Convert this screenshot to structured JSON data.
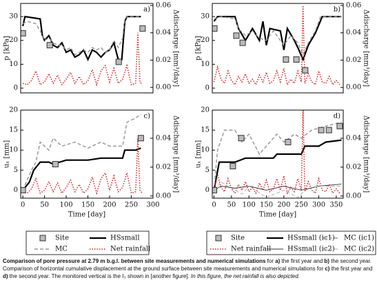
{
  "chart_data": [
    {
      "type": "line",
      "label": "a)",
      "ylabel": "p [kPa]",
      "y2label": "Δdischarge [mm³/day]",
      "xlim": [
        -5,
        300
      ],
      "ylim": [
        -2,
        35.5
      ],
      "yticks": [
        0,
        10,
        20,
        30
      ],
      "y2lim": [
        -0.004,
        0.0615
      ],
      "y2ticks": [
        {
          "value": 0,
          "label": "0.00"
        },
        {
          "value": 0.02,
          "label": "0.02"
        },
        {
          "value": 0.04,
          "label": "0.04"
        },
        {
          "value": 0.06,
          "label": "0.06"
        }
      ],
      "series": [
        {
          "color": "#000000",
          "style": "solid",
          "width": 2.2,
          "x": [
            0,
            5,
            40,
            45,
            50,
            60,
            70,
            80,
            90,
            100,
            110,
            120,
            130,
            140,
            150,
            160,
            170,
            180,
            190,
            200,
            210,
            220,
            228,
            235,
            240,
            272
          ],
          "values": [
            26,
            30,
            29,
            22,
            20,
            22,
            18,
            17,
            19,
            15,
            16,
            13,
            14,
            16,
            12,
            16,
            15,
            13,
            15,
            16,
            19,
            12,
            12,
            28,
            30,
            30
          ]
        },
        {
          "color": "#999999",
          "style": "dash",
          "width": 1.5,
          "x": [
            0,
            10,
            30,
            40,
            50,
            60,
            70,
            80,
            90,
            100,
            110,
            120,
            130,
            140,
            150,
            160,
            170,
            180,
            190,
            200,
            210,
            220,
            230,
            235,
            240,
            272
          ],
          "values": [
            27,
            28,
            27,
            24,
            20,
            21,
            19,
            18,
            18,
            16,
            17,
            14,
            15,
            16,
            15,
            17,
            16,
            17,
            15,
            16,
            20,
            17,
            21,
            29,
            30,
            30
          ]
        },
        {
          "color": "#d62020",
          "style": "dot",
          "width": 1.5,
          "axis": "y2",
          "x": [
            0,
            10,
            20,
            30,
            40,
            50,
            60,
            70,
            80,
            90,
            100,
            110,
            120,
            130,
            140,
            150,
            160,
            170,
            180,
            190,
            200,
            210,
            220,
            230,
            240,
            250,
            260,
            265,
            270,
            275
          ],
          "values": [
            0.003,
            0.002,
            0.005,
            0.012,
            0.002,
            0.004,
            0.01,
            0.003,
            0.009,
            0.002,
            0.006,
            0.011,
            0.003,
            0.008,
            0.002,
            0.005,
            0.013,
            0.002,
            0.012,
            0.016,
            0.004,
            0.014,
            0.003,
            0.006,
            0.016,
            0.002,
            0.003,
            0.04,
            0.004,
            0.002
          ]
        },
        {
          "color": "#bbbbbb",
          "style": "square",
          "x": [
            0,
            62,
            221,
            276
          ],
          "values": [
            23,
            18,
            11,
            25
          ]
        }
      ]
    },
    {
      "type": "line",
      "label": "b)",
      "ylabel": "p [kPa]",
      "y2label": "Δdischarge [mm³/day]",
      "xlim": [
        -5,
        370
      ],
      "ylim": [
        -2,
        35.5
      ],
      "yticks": [
        0,
        10,
        20,
        30
      ],
      "y2lim": [
        -0.004,
        0.0615
      ],
      "y2ticks": [
        {
          "value": 0,
          "label": "0.00"
        },
        {
          "value": 0.02,
          "label": "0.02"
        },
        {
          "value": 0.04,
          "label": "0.04"
        },
        {
          "value": 0.06,
          "label": "0.06"
        }
      ],
      "series": [
        {
          "color": "#000000",
          "style": "solid",
          "width": 2.2,
          "x": [
            0,
            10,
            20,
            60,
            70,
            90,
            110,
            130,
            140,
            150,
            160,
            190,
            200,
            210,
            230,
            240,
            255,
            270,
            290,
            310,
            365
          ],
          "values": [
            28,
            30,
            30,
            30,
            25,
            20,
            25,
            20,
            28,
            18,
            25,
            24,
            16,
            25,
            20,
            17,
            12,
            18,
            23,
            30,
            30
          ]
        },
        {
          "color": "#999999",
          "style": "dash",
          "width": 1.5,
          "x": [
            0,
            20,
            60,
            70,
            90,
            110,
            130,
            150,
            170,
            200,
            220,
            240,
            255,
            270,
            290,
            305,
            365
          ],
          "values": [
            29,
            30,
            29,
            25,
            22,
            24,
            21,
            20,
            24,
            18,
            22,
            19,
            14,
            19,
            24,
            30,
            30
          ]
        },
        {
          "color": "#d62020",
          "style": "dot",
          "width": 1.5,
          "axis": "y2",
          "x": [
            0,
            10,
            20,
            30,
            40,
            50,
            60,
            70,
            80,
            90,
            100,
            110,
            120,
            130,
            140,
            150,
            160,
            170,
            180,
            190,
            200,
            210,
            220,
            230,
            240,
            250,
            255,
            260,
            270,
            280,
            290,
            300,
            310,
            320,
            330,
            340,
            350,
            360
          ],
          "values": [
            0.004,
            0.015,
            0.006,
            0.003,
            0.012,
            0.005,
            0.002,
            0.008,
            0.004,
            0.01,
            0.003,
            0.006,
            0.002,
            0.009,
            0.004,
            0.011,
            0.003,
            0.005,
            0.012,
            0.004,
            0.014,
            0.002,
            0.006,
            0.003,
            0.012,
            0.004,
            0.06,
            0.003,
            0.01,
            0.004,
            0.002,
            0.012,
            0.004,
            0.003,
            0.008,
            0.002,
            0.005,
            0.002
          ]
        },
        {
          "color": "#bbbbbb",
          "style": "square",
          "x": [
            1,
            64,
            82,
            206,
            236,
            261
          ],
          "values": [
            25,
            22,
            19,
            12,
            12,
            7.5
          ]
        }
      ]
    },
    {
      "type": "line",
      "label": "c)",
      "ylabel": "uₓ [mm]",
      "y2label": "Δdischarge [mm³/day]",
      "xlabel": "Time [day]",
      "xlim": [
        -5,
        300
      ],
      "xticks": [
        0,
        50,
        100,
        150,
        200,
        250,
        300
      ],
      "ylim": [
        -2,
        20
      ],
      "yticks": [
        0,
        5,
        10,
        15,
        20
      ],
      "y2lim": [
        -0.0015,
        0.0595
      ],
      "y2ticks": [
        {
          "value": 0,
          "label": "0.00"
        },
        {
          "value": 0.02,
          "label": "0.02"
        },
        {
          "value": 0.04,
          "label": "0.04"
        }
      ],
      "series": [
        {
          "name": "Site",
          "color": "#bbbbbb",
          "style": "square",
          "x": [
            0,
            75,
            272
          ],
          "values": [
            0,
            6.5,
            13
          ]
        },
        {
          "name": "HSsmall",
          "color": "#000000",
          "style": "solid",
          "width": 2.2,
          "x": [
            0,
            15,
            25,
            40,
            60,
            70,
            100,
            150,
            180,
            230,
            235,
            260,
            272
          ],
          "values": [
            0,
            2,
            5,
            7,
            7,
            6.5,
            7.5,
            7.5,
            8,
            8,
            10,
            10,
            10.5
          ]
        },
        {
          "name": "MC",
          "color": "#999999",
          "style": "dash",
          "width": 1.5,
          "x": [
            0,
            20,
            30,
            40,
            60,
            70,
            90,
            120,
            150,
            180,
            200,
            230,
            240,
            260,
            272
          ],
          "values": [
            0,
            5,
            7,
            12,
            10,
            13,
            11,
            12,
            10.5,
            12,
            11,
            11,
            17,
            18,
            19
          ]
        },
        {
          "name": "Net rainfall",
          "color": "#d62020",
          "style": "dot",
          "width": 1.5,
          "axis": "y2",
          "x": [
            0,
            10,
            20,
            30,
            40,
            50,
            60,
            70,
            80,
            90,
            100,
            110,
            120,
            130,
            140,
            150,
            160,
            170,
            180,
            190,
            200,
            210,
            220,
            230,
            240,
            250,
            260,
            265,
            270,
            275
          ],
          "values": [
            0.003,
            0.002,
            0.005,
            0.012,
            0.002,
            0.004,
            0.01,
            0.003,
            0.009,
            0.002,
            0.006,
            0.011,
            0.003,
            0.008,
            0.002,
            0.005,
            0.013,
            0.002,
            0.012,
            0.016,
            0.004,
            0.014,
            0.003,
            0.006,
            0.016,
            0.002,
            0.003,
            0.04,
            0.004,
            0.002
          ]
        }
      ]
    },
    {
      "type": "line",
      "label": "d)",
      "ylabel": "uₓ [mm]",
      "y2label": "Δdischarge [mm³/day]",
      "xlabel": "Time [day]",
      "xlim": [
        -5,
        370
      ],
      "xticks": [
        0,
        50,
        100,
        150,
        200,
        250,
        300,
        350
      ],
      "ylim": [
        -2,
        20
      ],
      "yticks": [
        0,
        5,
        10,
        15,
        20
      ],
      "y2lim": [
        -0.0015,
        0.0595
      ],
      "y2ticks": [
        {
          "value": 0,
          "label": "0.00"
        },
        {
          "value": 0.02,
          "label": "0.02"
        },
        {
          "value": 0.04,
          "label": "0.04"
        }
      ],
      "series": [
        {
          "name": "Site",
          "color": "#bbbbbb",
          "style": "square",
          "x": [
            0,
            54,
            78,
            212,
            307,
            329,
            360
          ],
          "values": [
            0,
            6,
            13,
            12,
            15,
            15,
            16
          ]
        },
        {
          "name": "HSsmall (ic1)",
          "color": "#000000",
          "style": "solid",
          "width": 2.2,
          "x": [
            0,
            15,
            60,
            90,
            170,
            180,
            250,
            260,
            300,
            320,
            365
          ],
          "values": [
            0,
            7,
            7,
            8,
            8,
            9,
            9,
            11,
            11,
            12,
            12.5
          ]
        },
        {
          "name": "MC (ic1)",
          "color": "#999999",
          "style": "dash",
          "width": 1.5,
          "x": [
            0,
            10,
            30,
            60,
            80,
            100,
            130,
            180,
            200,
            230,
            250,
            280,
            320,
            365
          ],
          "values": [
            0,
            10,
            15,
            15,
            12,
            14,
            9,
            14,
            12,
            14,
            13,
            15,
            16,
            17
          ]
        },
        {
          "name": "Net rainfall",
          "color": "#d62020",
          "style": "dot",
          "width": 1.5,
          "axis": "y2",
          "x": [
            0,
            10,
            20,
            30,
            40,
            50,
            60,
            70,
            80,
            90,
            100,
            110,
            120,
            130,
            140,
            150,
            160,
            170,
            180,
            190,
            200,
            210,
            220,
            230,
            240,
            250,
            255,
            260,
            270,
            280,
            290,
            300,
            310,
            320,
            330,
            340,
            350,
            360
          ],
          "values": [
            0.004,
            0.015,
            0.006,
            0.003,
            0.012,
            0.005,
            0.002,
            0.008,
            0.004,
            0.01,
            0.003,
            0.006,
            0.002,
            0.009,
            0.004,
            0.011,
            0.003,
            0.005,
            0.012,
            0.004,
            0.014,
            0.002,
            0.006,
            0.003,
            0.012,
            0.004,
            0.06,
            0.003,
            0.01,
            0.004,
            0.002,
            0.012,
            0.004,
            0.003,
            0.008,
            0.002,
            0.005,
            0.002
          ]
        },
        {
          "name": "HSsmall (ic2)",
          "color": "#333333",
          "style": "solid",
          "width": 0.9,
          "x": [
            0,
            20,
            60,
            100,
            150,
            200,
            250,
            300,
            365
          ],
          "values": [
            0,
            1,
            0.5,
            1,
            0,
            1,
            0,
            1,
            1.5
          ]
        },
        {
          "name": "MC (ic2)",
          "color": "#aaaaaa",
          "style": "dash",
          "width": 0.9,
          "x": [
            0,
            20,
            80,
            100,
            150,
            200,
            240,
            260,
            300,
            365
          ],
          "values": [
            0,
            2,
            -1,
            1,
            -1.8,
            0,
            -1.8,
            0,
            1,
            1
          ]
        }
      ]
    }
  ],
  "caption": [
    {
      "text": "Comparison of pore pressure at 2.79 m b.g.l. between site measurements and numerical simulations",
      "style": "bold"
    },
    {
      "text": " for ",
      "style": "normal"
    },
    {
      "text": "a)",
      "style": "bold"
    },
    {
      "text": " the first year and ",
      "style": "normal"
    },
    {
      "text": "b)",
      "style": "bold"
    },
    {
      "text": " the second year. Comparison of horizontal cumulative displacement at the ground surface between site measurements and numerical simulations for ",
      "style": "normal"
    },
    {
      "text": "c)",
      "style": "bold"
    },
    {
      "text": " the first year and ",
      "style": "normal"
    },
    {
      "text": "d)",
      "style": "bold"
    },
    {
      "text": " the second year. The monitored vertical is the I₃ shown in [another figure]. ",
      "style": "normal"
    },
    {
      "text": "In this figure, the net rainfall is also depicted.",
      "style": "italic"
    }
  ]
}
